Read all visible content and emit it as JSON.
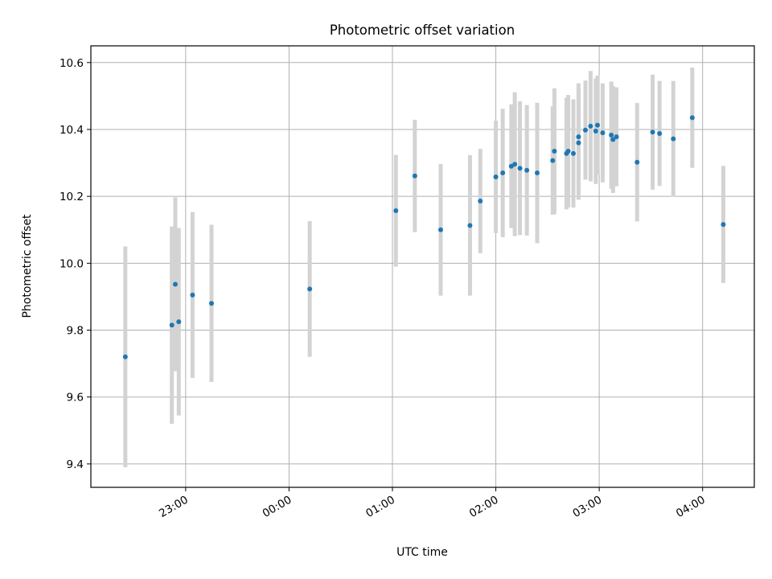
{
  "chart_data": {
    "type": "scatter",
    "title": "Photometric offset variation",
    "xlabel": "UTC time",
    "ylabel": "Photometric offset",
    "grid": true,
    "x_unit": "UTC time (HH:MM), points before 00:00 belong to the previous day",
    "xlim": [
      "22:05",
      "04:30"
    ],
    "ylim": [
      9.33,
      10.65
    ],
    "xticks": [
      "23:00",
      "00:00",
      "01:00",
      "02:00",
      "03:00",
      "04:00"
    ],
    "yticks": [
      9.4,
      9.6,
      9.8,
      10.0,
      10.2,
      10.4,
      10.6
    ],
    "ytick_labels": [
      "9.4",
      "9.6",
      "9.8",
      "10.0",
      "10.2",
      "10.4",
      "10.6"
    ],
    "marker_color": "#1f77b4",
    "errorbar_color": "#d3d3d3",
    "points": [
      {
        "x": "22:25",
        "y": 9.72,
        "err": 0.33
      },
      {
        "x": "22:52",
        "y": 9.815,
        "err": 0.295
      },
      {
        "x": "22:54",
        "y": 9.937,
        "err": 0.26
      },
      {
        "x": "22:56",
        "y": 9.825,
        "err": 0.28
      },
      {
        "x": "23:04",
        "y": 9.905,
        "err": 0.248
      },
      {
        "x": "23:15",
        "y": 9.88,
        "err": 0.235
      },
      {
        "x": "00:12",
        "y": 9.923,
        "err": 0.203
      },
      {
        "x": "01:02",
        "y": 10.157,
        "err": 0.167
      },
      {
        "x": "01:13",
        "y": 10.261,
        "err": 0.168
      },
      {
        "x": "01:28",
        "y": 10.1,
        "err": 0.197
      },
      {
        "x": "01:45",
        "y": 10.113,
        "err": 0.21
      },
      {
        "x": "01:51",
        "y": 10.186,
        "err": 0.156
      },
      {
        "x": "02:00",
        "y": 10.258,
        "err": 0.168
      },
      {
        "x": "02:04",
        "y": 10.27,
        "err": 0.192
      },
      {
        "x": "02:09",
        "y": 10.29,
        "err": 0.185
      },
      {
        "x": "02:11",
        "y": 10.296,
        "err": 0.215
      },
      {
        "x": "02:14",
        "y": 10.284,
        "err": 0.2
      },
      {
        "x": "02:18",
        "y": 10.278,
        "err": 0.195
      },
      {
        "x": "02:24",
        "y": 10.27,
        "err": 0.21
      },
      {
        "x": "02:33",
        "y": 10.307,
        "err": 0.162
      },
      {
        "x": "02:34",
        "y": 10.335,
        "err": 0.188
      },
      {
        "x": "02:41",
        "y": 10.328,
        "err": 0.167
      },
      {
        "x": "02:42",
        "y": 10.335,
        "err": 0.168
      },
      {
        "x": "02:45",
        "y": 10.328,
        "err": 0.162
      },
      {
        "x": "02:48",
        "y": 10.36,
        "err": 0.17
      },
      {
        "x": "02:48",
        "y": 10.378,
        "err": 0.16
      },
      {
        "x": "02:52",
        "y": 10.398,
        "err": 0.148
      },
      {
        "x": "02:55",
        "y": 10.41,
        "err": 0.165
      },
      {
        "x": "02:58",
        "y": 10.395,
        "err": 0.158
      },
      {
        "x": "02:59",
        "y": 10.413,
        "err": 0.148
      },
      {
        "x": "03:02",
        "y": 10.39,
        "err": 0.148
      },
      {
        "x": "03:07",
        "y": 10.383,
        "err": 0.16
      },
      {
        "x": "03:08",
        "y": 10.37,
        "err": 0.16
      },
      {
        "x": "03:10",
        "y": 10.378,
        "err": 0.148
      },
      {
        "x": "03:22",
        "y": 10.302,
        "err": 0.177
      },
      {
        "x": "03:31",
        "y": 10.392,
        "err": 0.172
      },
      {
        "x": "03:35",
        "y": 10.388,
        "err": 0.157
      },
      {
        "x": "03:43",
        "y": 10.372,
        "err": 0.173
      },
      {
        "x": "03:54",
        "y": 10.435,
        "err": 0.15
      },
      {
        "x": "04:12",
        "y": 10.116,
        "err": 0.175
      }
    ]
  }
}
